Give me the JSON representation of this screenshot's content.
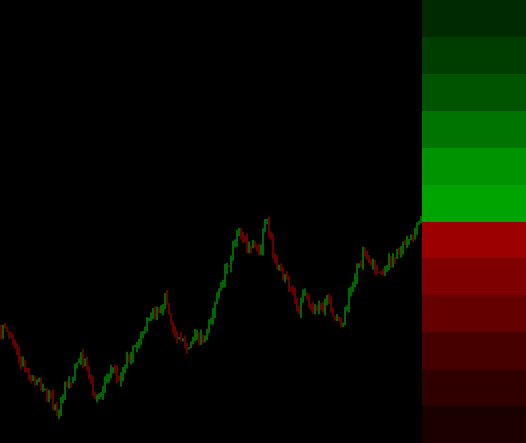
{
  "chart_data": {
    "type": "candlestick",
    "title": "",
    "xlabel": "",
    "ylabel": "",
    "grid": false,
    "ylim": [
      0,
      443
    ],
    "colors": {
      "up": "#00c800",
      "down": "#c80000",
      "background": "#000000"
    },
    "waypoints": [
      [
        0,
        114
      ],
      [
        10,
        110
      ],
      [
        20,
        83
      ],
      [
        30,
        66
      ],
      [
        40,
        58
      ],
      [
        50,
        45
      ],
      [
        58,
        30
      ],
      [
        65,
        52
      ],
      [
        72,
        62
      ],
      [
        80,
        88
      ],
      [
        88,
        70
      ],
      [
        96,
        40
      ],
      [
        104,
        60
      ],
      [
        112,
        70
      ],
      [
        120,
        63
      ],
      [
        128,
        85
      ],
      [
        136,
        98
      ],
      [
        144,
        115
      ],
      [
        152,
        125
      ],
      [
        160,
        135
      ],
      [
        166,
        146
      ],
      [
        172,
        115
      ],
      [
        180,
        100
      ],
      [
        188,
        98
      ],
      [
        196,
        105
      ],
      [
        204,
        102
      ],
      [
        212,
        125
      ],
      [
        220,
        160
      ],
      [
        228,
        175
      ],
      [
        236,
        205
      ],
      [
        242,
        210
      ],
      [
        248,
        195
      ],
      [
        254,
        200
      ],
      [
        260,
        190
      ],
      [
        266,
        225
      ],
      [
        270,
        205
      ],
      [
        276,
        180
      ],
      [
        282,
        170
      ],
      [
        288,
        160
      ],
      [
        294,
        150
      ],
      [
        298,
        128
      ],
      [
        304,
        150
      ],
      [
        310,
        135
      ],
      [
        316,
        138
      ],
      [
        322,
        135
      ],
      [
        328,
        150
      ],
      [
        334,
        125
      ],
      [
        342,
        118
      ],
      [
        348,
        142
      ],
      [
        356,
        170
      ],
      [
        364,
        188
      ],
      [
        372,
        180
      ],
      [
        380,
        168
      ],
      [
        388,
        180
      ],
      [
        396,
        188
      ],
      [
        404,
        196
      ],
      [
        412,
        205
      ],
      [
        420,
        222
      ]
    ]
  },
  "heat_panel": {
    "cells": [
      {
        "color": "#002a00"
      },
      {
        "color": "#003e00"
      },
      {
        "color": "#005400"
      },
      {
        "color": "#007400"
      },
      {
        "color": "#009300"
      },
      {
        "color": "#00a400"
      },
      {
        "color": "#9c0000"
      },
      {
        "color": "#7e0000"
      },
      {
        "color": "#640000"
      },
      {
        "color": "#460000"
      },
      {
        "color": "#2e0000"
      },
      {
        "color": "#1b0000"
      }
    ]
  }
}
